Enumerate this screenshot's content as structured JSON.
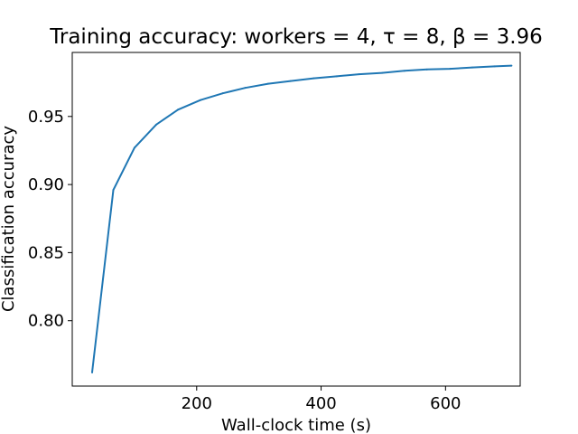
{
  "chart_data": {
    "type": "line",
    "title": "Training accuracy: workers = 4, τ = 8, β = 3.96",
    "xlabel": "Wall-clock time (s)",
    "ylabel": "Classification accuracy",
    "xlim": [
      0,
      720
    ],
    "ylim": [
      0.752,
      0.997
    ],
    "xticks": [
      200,
      400,
      600
    ],
    "yticks": [
      0.8,
      0.85,
      0.9,
      0.95
    ],
    "xtick_labels": [
      "200",
      "400",
      "600"
    ],
    "ytick_labels": [
      "0.80",
      "0.85",
      "0.90",
      "0.95"
    ],
    "grid": false,
    "series": [
      {
        "color": "#1f77b4",
        "x": [
          32,
          66,
          100,
          135,
          170,
          206,
          242,
          278,
          315,
          351,
          388,
          425,
          461,
          498,
          534,
          570,
          607,
          643,
          679,
          706
        ],
        "y": [
          0.762,
          0.896,
          0.927,
          0.944,
          0.955,
          0.962,
          0.967,
          0.971,
          0.974,
          0.976,
          0.978,
          0.9795,
          0.981,
          0.982,
          0.9835,
          0.9845,
          0.985,
          0.986,
          0.9868,
          0.9873
        ]
      }
    ]
  }
}
